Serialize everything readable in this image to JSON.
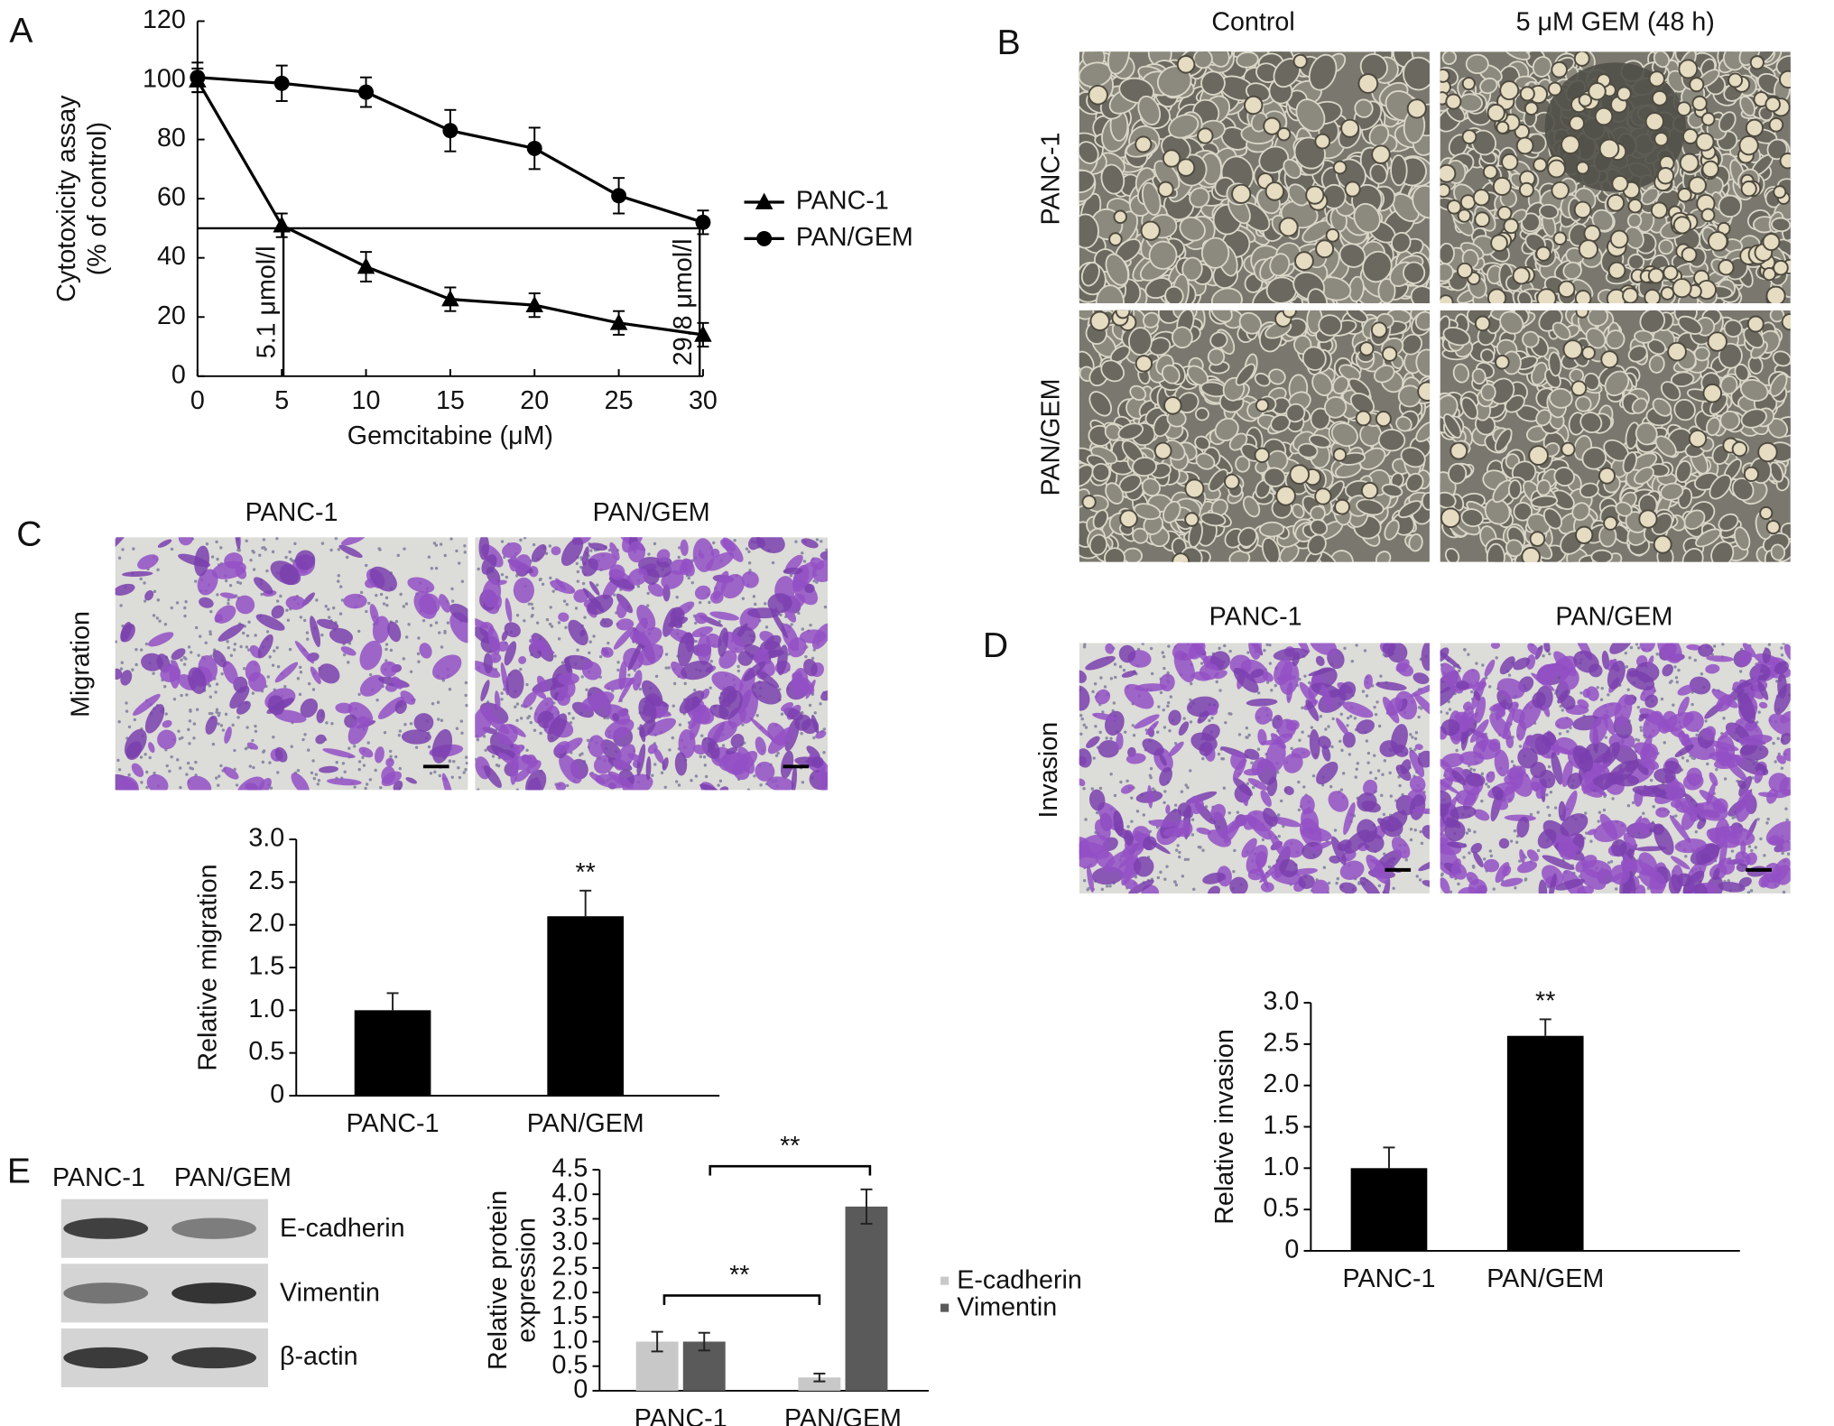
{
  "figure": {
    "panel_labels": [
      "A",
      "B",
      "C",
      "D",
      "E"
    ],
    "panel_b": {
      "columns": [
        "Control",
        "5 μM GEM (48 h)"
      ],
      "rows": [
        "PANC-1",
        "PAN/GEM"
      ]
    },
    "panel_c": {
      "columns": [
        "PANC-1",
        "PAN/GEM"
      ],
      "row": "Migration"
    },
    "panel_d": {
      "columns": [
        "PANC-1",
        "PAN/GEM"
      ],
      "row": "Invasion"
    },
    "panel_e": {
      "columns": [
        "PANC-1",
        "PAN/GEM"
      ],
      "rows": [
        "E-cadherin",
        "Vimentin",
        "β-actin"
      ]
    }
  },
  "chart_data": [
    {
      "type": "line",
      "xlabel": "Gemcitabine (μM)",
      "ylabel": [
        "Cytotoxicity assay",
        "(% of control)"
      ],
      "x": [
        0,
        5,
        10,
        15,
        20,
        25,
        30
      ],
      "xlim": [
        0,
        30
      ],
      "xticks": [
        0,
        5,
        10,
        15,
        20,
        25,
        30
      ],
      "ylim": [
        0,
        120
      ],
      "yticks": [
        0,
        20,
        40,
        60,
        80,
        100,
        120
      ],
      "series": [
        {
          "name": "PANC-1",
          "color": "#000000",
          "marker": "triangle",
          "values": [
            100,
            51,
            37,
            26,
            24,
            18,
            14
          ],
          "errors": [
            4,
            4,
            5,
            4,
            4,
            4,
            4
          ]
        },
        {
          "name": "PAN/GEM",
          "color": "#000000",
          "marker": "circle",
          "values": [
            101,
            99,
            96,
            83,
            77,
            61,
            52
          ],
          "errors": [
            5,
            6,
            5,
            7,
            7,
            6,
            4
          ]
        }
      ],
      "legend": "right",
      "reference_lines": {
        "y": 50,
        "x": [
          5.1,
          29.8
        ]
      },
      "annotations": [
        "5.1 μmol/l",
        "29.8 μmol/l"
      ]
    },
    {
      "type": "bar",
      "ylabel": "Relative migration",
      "categories": [
        "PANC-1",
        "PAN/GEM"
      ],
      "values": [
        1.0,
        2.1
      ],
      "errors": [
        0.2,
        0.3
      ],
      "color": "#000000",
      "ylim": [
        0,
        3
      ],
      "yticks": [
        0,
        0.5,
        {
          "value": 1,
          "label": "1.0"
        },
        1.5,
        {
          "value": 2,
          "label": "2.0"
        },
        2.5,
        {
          "value": 3,
          "label": "3.0"
        }
      ],
      "annotations": [
        "**"
      ]
    },
    {
      "type": "bar",
      "ylabel": "Relative invasion",
      "categories": [
        "PANC-1",
        "PAN/GEM"
      ],
      "values": [
        1.0,
        2.6
      ],
      "errors": [
        0.25,
        0.2
      ],
      "color": "#000000",
      "ylim": [
        0,
        3
      ],
      "yticks": [
        0,
        0.5,
        {
          "value": 1,
          "label": "1.0"
        },
        1.5,
        {
          "value": 2,
          "label": "2.0"
        },
        2.5,
        {
          "value": 3,
          "label": "3.0"
        }
      ],
      "annotations": [
        "**"
      ]
    },
    {
      "type": "bar",
      "ylabel": [
        "Relative protein",
        "expression"
      ],
      "categories": [
        "PANC-1",
        "PAN/GEM"
      ],
      "series": [
        {
          "name": "E-cadherin",
          "color": "#c8c8c8",
          "values": [
            1.0,
            0.27
          ],
          "errors": [
            0.2,
            0.08
          ]
        },
        {
          "name": "Vimentin",
          "color": "#5a5a5a",
          "values": [
            1.0,
            3.75
          ],
          "errors": [
            0.18,
            0.35
          ]
        }
      ],
      "ylim": [
        0,
        4.5
      ],
      "yticks": [
        0,
        0.5,
        {
          "value": 1,
          "label": "1.0"
        },
        1.5,
        {
          "value": 2,
          "label": "2.0"
        },
        2.5,
        {
          "value": 3,
          "label": "3.0"
        },
        3.5,
        {
          "value": 4,
          "label": "4.0"
        },
        4.5
      ],
      "legend": "right",
      "annotations": [
        "**",
        "**"
      ]
    }
  ]
}
